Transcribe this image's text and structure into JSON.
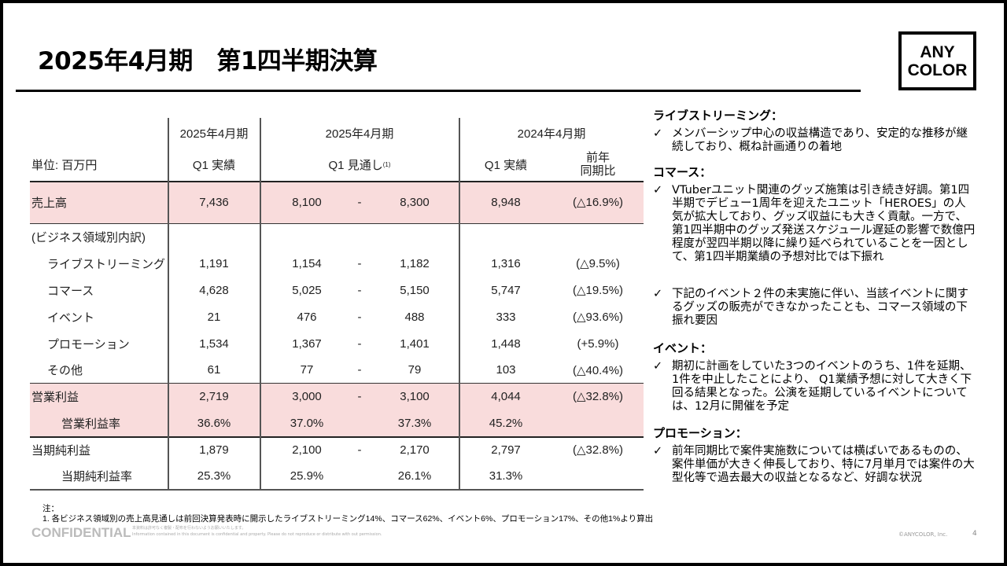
{
  "title": "2025年4月期　第1四半期決算",
  "logo": {
    "line1": "ANY",
    "line2": "COLOR"
  },
  "table": {
    "unit": "単位: 百万円",
    "headers": {
      "col1_period": "2025年4月期",
      "col1_sub": "Q1 実績",
      "col2_period": "2025年4月期",
      "col2_sub": "Q1 見通し",
      "col2_note": "(1)",
      "col3_period": "2024年4月期",
      "col3_sub": "Q1 実績",
      "col4_sub1": "前年",
      "col4_sub2": "同期比"
    },
    "rows": [
      {
        "label": "売上高",
        "actual": "7,436",
        "low": "8,100",
        "dash": "-",
        "high": "8,300",
        "prev": "8,948",
        "yoy": "(△16.9%)"
      },
      {
        "label": "(ビジネス領域別内訳)",
        "actual": "",
        "low": "",
        "dash": "",
        "high": "",
        "prev": "",
        "yoy": ""
      },
      {
        "label": "ライブストリーミング",
        "actual": "1,191",
        "low": "1,154",
        "dash": "-",
        "high": "1,182",
        "prev": "1,316",
        "yoy": "(△9.5%)"
      },
      {
        "label": "コマース",
        "actual": "4,628",
        "low": "5,025",
        "dash": "-",
        "high": "5,150",
        "prev": "5,747",
        "yoy": "(△19.5%)"
      },
      {
        "label": "イベント",
        "actual": "21",
        "low": "476",
        "dash": "-",
        "high": "488",
        "prev": "333",
        "yoy": "(△93.6%)"
      },
      {
        "label": "プロモーション",
        "actual": "1,534",
        "low": "1,367",
        "dash": "-",
        "high": "1,401",
        "prev": "1,448",
        "yoy": "(+5.9%)"
      },
      {
        "label": "その他",
        "actual": "61",
        "low": "77",
        "dash": "-",
        "high": "79",
        "prev": "103",
        "yoy": "(△40.4%)"
      },
      {
        "label": "営業利益",
        "actual": "2,719",
        "low": "3,000",
        "dash": "-",
        "high": "3,100",
        "prev": "4,044",
        "yoy": "(△32.8%)"
      },
      {
        "label": "営業利益率",
        "actual": "36.6%",
        "low": "37.0%",
        "dash": "",
        "high": "37.3%",
        "prev": "45.2%",
        "yoy": ""
      },
      {
        "label": "当期純利益",
        "actual": "1,879",
        "low": "2,100",
        "dash": "-",
        "high": "2,170",
        "prev": "2,797",
        "yoy": "(△32.8%)"
      },
      {
        "label": "当期純利益率",
        "actual": "25.3%",
        "low": "25.9%",
        "dash": "",
        "high": "26.1%",
        "prev": "31.3%",
        "yoy": ""
      }
    ]
  },
  "commentary": [
    {
      "heading": "ライブストリーミング：",
      "bullets": [
        "メンバーシップ中心の収益構造であり、安定的な推移が継続しており、概ね計画通りの着地"
      ]
    },
    {
      "heading": "コマース：",
      "bullets": [
        "VTuberユニット関連のグッズ施策は引き続き好調。第1四半期でデビュー1周年を迎えたユニット「HEROES」の人気が拡大しており、グッズ収益にも大きく貢献。一方で、第1四半期中のグッズ発送スケジュール遅延の影響で数億円程度が翌四半期以降に繰り延べられていることを一因として、第1四半期業績の予想対比では下振れ",
        "下記のイベント２件の未実施に伴い、当該イベントに関するグッズの販売ができなかったことも、コマース領域の下振れ要因"
      ]
    },
    {
      "heading": "イベント：",
      "bullets": [
        "期初に計画をしていた3つのイベントのうち、1件を延期、1件を中止したことにより、 Q1業績予想に対して大きく下回る結果となった。公演を延期しているイベントについては、12月に開催を予定"
      ]
    },
    {
      "heading": "プロモーション：",
      "bullets": [
        "前年同期比で案件実施数については横ばいであるものの、案件単価が大きく伸長しており、特に7月単月では案件の大型化等で過去最大の収益となるなど、好調な状況"
      ]
    }
  ],
  "notes": {
    "heading": "注：",
    "line1": "1. 各ビジネス領域別の売上高見通しは前回決算発表時に開示したライブストリーミング14%、コマース62%、イベント6%、プロモーション17%、その他1%より算出"
  },
  "footer": {
    "confidential": "CONFIDENTIAL",
    "jp": "本資料は許可なく複製・配布を行わないようお願いいたします。",
    "en": "Information contained in this document is confidential and property. Please do not reproduce or distribute with out permission.",
    "copyright": "©ANYCOLOR, Inc.",
    "page": "4"
  },
  "colors": {
    "highlight": "#f9dcdc"
  }
}
